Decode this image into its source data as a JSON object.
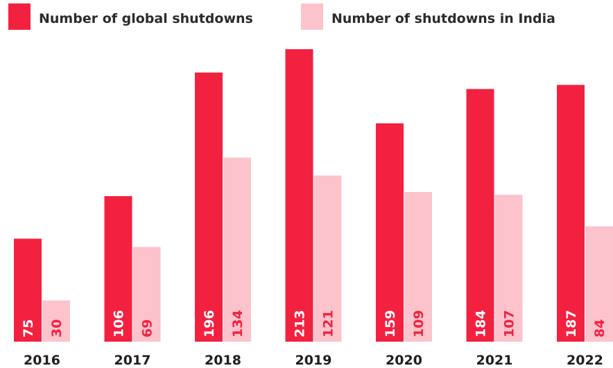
{
  "chart_data": {
    "type": "bar",
    "title": "",
    "xlabel": "",
    "ylabel": "",
    "categories": [
      "2016",
      "2017",
      "2018",
      "2019",
      "2020",
      "2021",
      "2022"
    ],
    "series": [
      {
        "name": "Number of global shutdowns",
        "color": "#f2213f",
        "label_color": "#ffffff",
        "values": [
          75,
          106,
          196,
          213,
          159,
          184,
          187
        ]
      },
      {
        "name": "Number of shutdowns in India",
        "color": "#fcc3cc",
        "label_color": "#f2213f",
        "values": [
          30,
          69,
          134,
          121,
          109,
          107,
          84
        ]
      }
    ],
    "ylim": [
      0,
      213
    ],
    "grid": false,
    "legend_position": "top"
  }
}
